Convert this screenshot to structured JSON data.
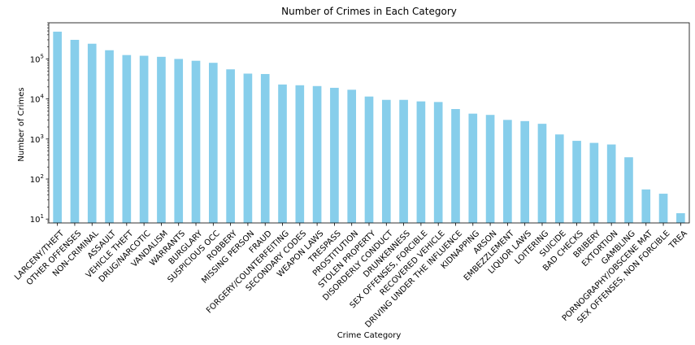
{
  "chart_data": {
    "type": "bar",
    "title": "Number of Crimes in Each Category",
    "xlabel": "Crime Category",
    "ylabel": "Number of Crimes",
    "yscale": "log",
    "ylim": [
      8,
      800000
    ],
    "yticks": [
      {
        "value": 10,
        "base": "10",
        "exp": "1"
      },
      {
        "value": 100,
        "base": "10",
        "exp": "2"
      },
      {
        "value": 1000,
        "base": "10",
        "exp": "3"
      },
      {
        "value": 10000,
        "base": "10",
        "exp": "4"
      },
      {
        "value": 100000,
        "base": "10",
        "exp": "5"
      }
    ],
    "bar_color": "#87ceeb",
    "grid": false,
    "legend": "none",
    "categories": [
      "LARCENY/THEFT",
      "OTHER OFFENSES",
      "NON-CRIMINAL",
      "ASSAULT",
      "VEHICLE THEFT",
      "DRUG/NARCOTIC",
      "VANDALISM",
      "WARRANTS",
      "BURGLARY",
      "SUSPICIOUS OCC",
      "ROBBERY",
      "MISSING PERSON",
      "FRAUD",
      "FORGERY/COUNTERFEITING",
      "SECONDARY CODES",
      "WEAPON LAWS",
      "TRESPASS",
      "PROSTITUTION",
      "STOLEN PROPERTY",
      "DISORDERLY CONDUCT",
      "DRUNKENNESS",
      "SEX OFFENSES, FORCIBLE",
      "RECOVERED VEHICLE",
      "DRIVING UNDER THE INFLUENCE",
      "KIDNAPPING",
      "ARSON",
      "EMBEZZLEMENT",
      "LIQUOR LAWS",
      "LOITERING",
      "SUICIDE",
      "BAD CHECKS",
      "BRIBERY",
      "EXTORTION",
      "GAMBLING",
      "PORNOGRAPHY/OBSCENE MAT",
      "SEX OFFENSES, NON FORCIBLE",
      "TREA"
    ],
    "values": [
      480000,
      300000,
      240000,
      165000,
      125000,
      120000,
      113000,
      100000,
      90000,
      80000,
      55000,
      43000,
      42000,
      23000,
      22000,
      21000,
      19000,
      17000,
      11500,
      9500,
      9500,
      8700,
      8400,
      5600,
      4300,
      4000,
      3000,
      2800,
      2400,
      1300,
      900,
      800,
      730,
      350,
      55,
      43,
      14
    ]
  }
}
